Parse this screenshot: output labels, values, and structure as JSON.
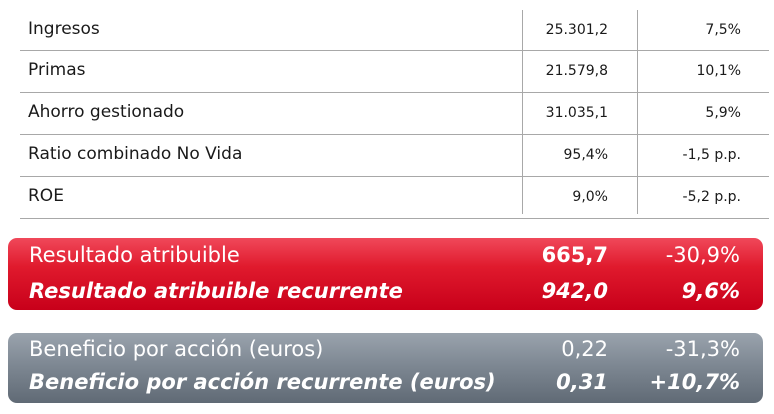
{
  "table": {
    "rows": [
      {
        "label": "Ingresos",
        "value": "25.301,2",
        "change": "7,5%"
      },
      {
        "label": "Primas",
        "value": "21.579,8",
        "change": "10,1%"
      },
      {
        "label": "Ahorro gestionado",
        "value": "31.035,1",
        "change": "5,9%"
      },
      {
        "label": "Ratio combinado No Vida",
        "value": "95,4%",
        "change": "-1,5 p.p."
      },
      {
        "label": "ROE",
        "value": "9,0%",
        "change": "-5,2 p.p."
      }
    ]
  },
  "result_band": {
    "color": "#e01a2d",
    "rows": [
      {
        "label": "Resultado atribuible",
        "value": "665,7",
        "change": "-30,9%"
      },
      {
        "label": "Resultado atribuible recurrente",
        "value": "942,0",
        "change": "9,6%"
      }
    ]
  },
  "eps_band": {
    "color": "#7e8893",
    "rows": [
      {
        "label": "Beneficio por acción (euros)",
        "value": "0,22",
        "change": "-31,3%"
      },
      {
        "label": "Beneficio por acción recurrente (euros)",
        "value": "0,31",
        "change": "+10,7%"
      }
    ]
  }
}
